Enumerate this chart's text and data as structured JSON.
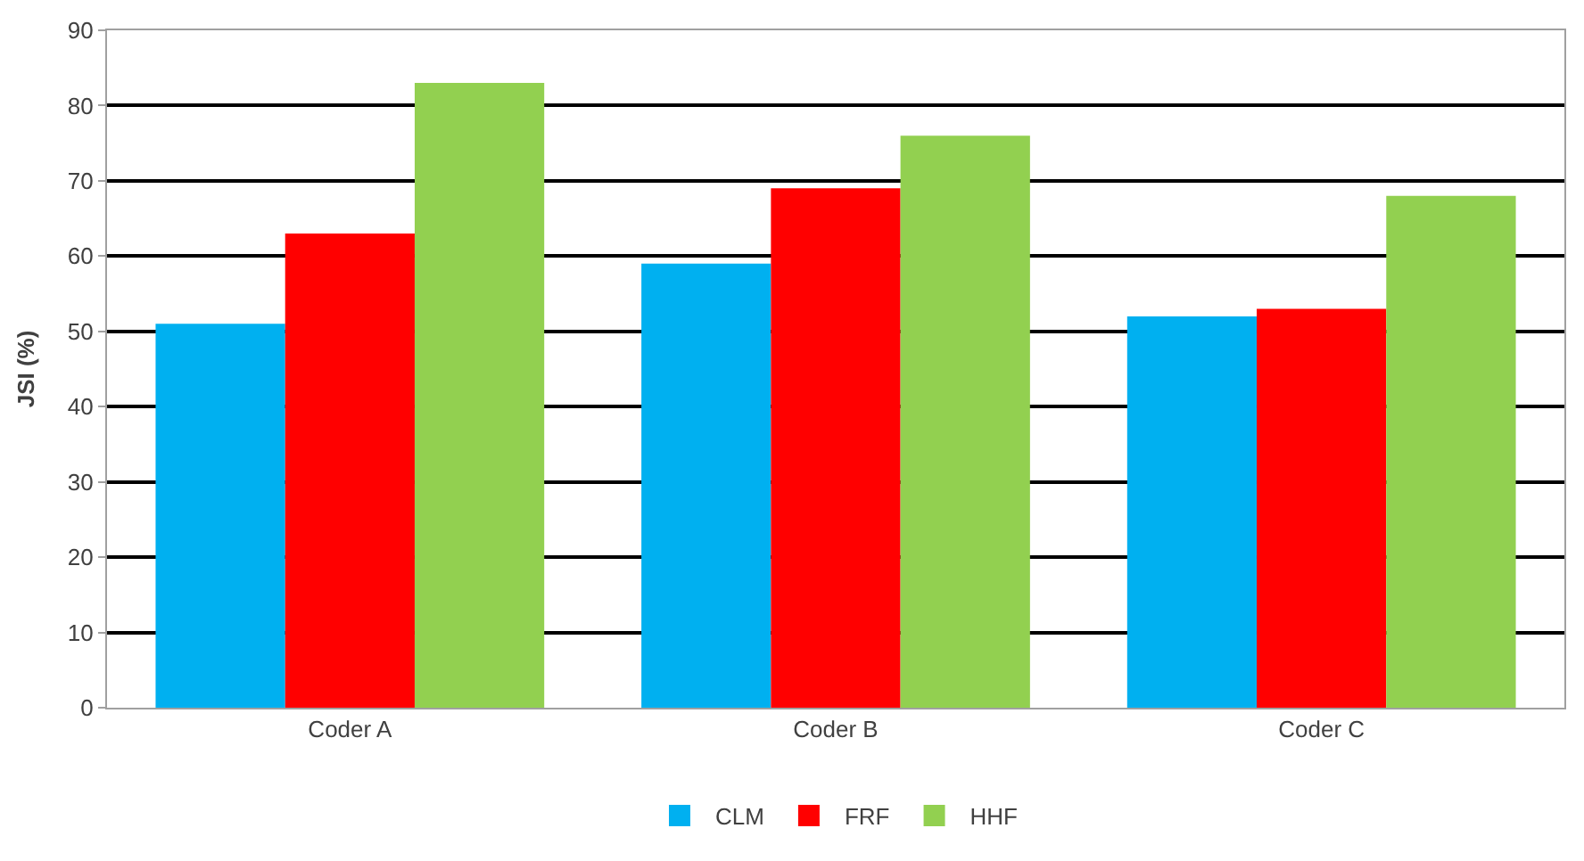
{
  "chart_data": {
    "type": "bar",
    "ylabel": "JSI (%)",
    "categories": [
      "Coder A",
      "Coder B",
      "Coder C"
    ],
    "series": [
      {
        "name": "CLM",
        "color": "#00b0f0",
        "values": [
          51,
          59,
          52
        ]
      },
      {
        "name": "FRF",
        "color": "#ff0000",
        "values": [
          63,
          69,
          53
        ]
      },
      {
        "name": "HHF",
        "color": "#92d050",
        "values": [
          83,
          76,
          68
        ]
      }
    ],
    "ylim": [
      0,
      90
    ],
    "yticks": [
      0,
      10,
      20,
      30,
      40,
      50,
      60,
      70,
      80,
      90
    ],
    "grid": "y",
    "legend": "bottom"
  }
}
